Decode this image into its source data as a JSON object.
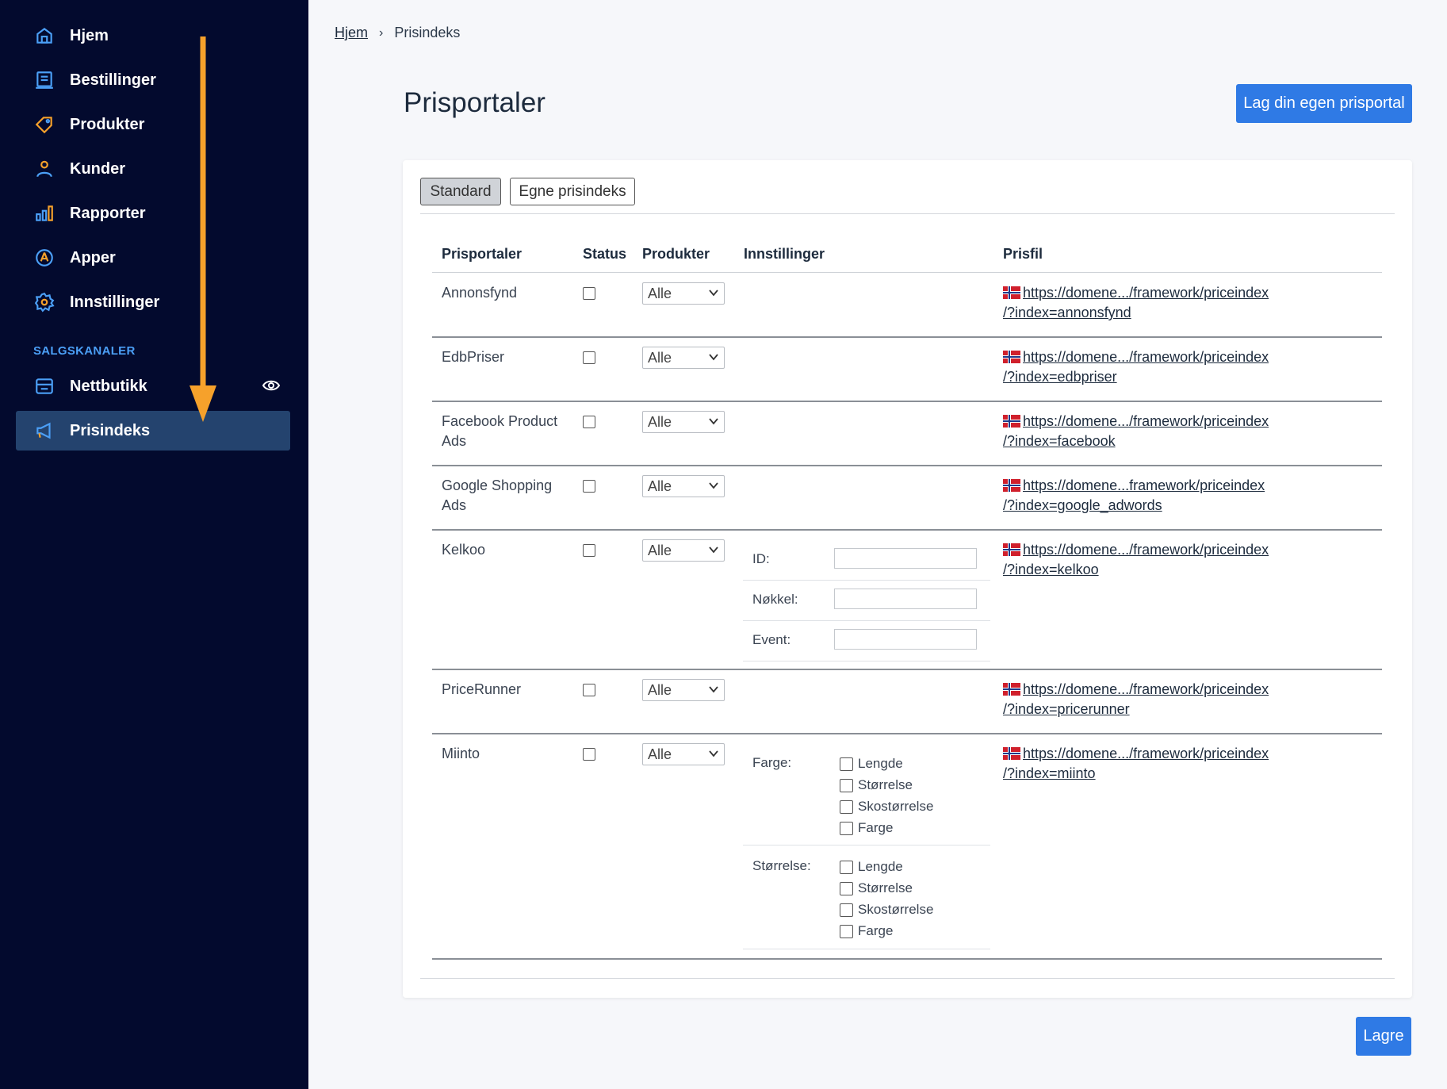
{
  "sidebar": {
    "items": [
      {
        "label": "Hjem",
        "icon": "home-icon"
      },
      {
        "label": "Bestillinger",
        "icon": "orders-list-icon"
      },
      {
        "label": "Produkter",
        "icon": "tag-icon"
      },
      {
        "label": "Kunder",
        "icon": "user-icon"
      },
      {
        "label": "Rapporter",
        "icon": "bar-chart-icon"
      },
      {
        "label": "Apper",
        "icon": "apps-icon"
      },
      {
        "label": "Innstillinger",
        "icon": "gear-icon"
      }
    ],
    "section_label": "SALGSKANALER",
    "channels": [
      {
        "label": "Nettbutikk",
        "icon": "store-icon"
      },
      {
        "label": "Prisindeks",
        "icon": "megaphone-icon",
        "active": true
      }
    ],
    "accent_color": "#4b9ff6",
    "background_color": "#030a2e",
    "annotation_arrow_color": "#f6a12b"
  },
  "breadcrumb": {
    "home": "Hjem",
    "current": "Prisindeks"
  },
  "page": {
    "title": "Prisportaler",
    "create_button": "Lag din egen prisportal",
    "save_button": "Lagre"
  },
  "tabs": [
    {
      "label": "Standard",
      "active": true
    },
    {
      "label": "Egne prisindeks",
      "active": false
    }
  ],
  "table": {
    "headers": [
      "Prisportaler",
      "Status",
      "Produkter",
      "Innstillinger",
      "Prisfil"
    ],
    "rows": [
      {
        "name": "Annonsfynd",
        "select": "Alle",
        "link1": "https://domene.../framework/priceindex",
        "link2": "/?index=annonsfynd"
      },
      {
        "name": "EdbPriser",
        "select": "Alle",
        "link1": "https://domene.../framework/priceindex",
        "link2": "/?index=edbpriser"
      },
      {
        "name": "Facebook Product Ads",
        "select": "Alle",
        "link1": "https://domene.../framework/priceindex",
        "link2": "/?index=facebook"
      },
      {
        "name": "Google Shopping Ads",
        "select": "Alle",
        "link1": "https://domene...framework/priceindex",
        "link2": "/?index=google_adwords"
      },
      {
        "name": "Kelkoo",
        "select": "Alle",
        "link1": "https://domene.../framework/priceindex",
        "link2": "/?index=kelkoo"
      },
      {
        "name": "PriceRunner",
        "select": "Alle",
        "link1": "https://domene.../framework/priceindex",
        "link2": "/?index=pricerunner"
      },
      {
        "name": "Miinto",
        "select": "Alle",
        "link1": "https://domene.../framework/priceindex",
        "link2": "/?index=miinto"
      }
    ],
    "kelkoo_settings": {
      "id_label": "ID:",
      "key_label": "Nøkkel:",
      "event_label": "Event:"
    },
    "miinto_settings": {
      "color_label": "Farge:",
      "size_label": "Størrelse:",
      "options": [
        "Lengde",
        "Størrelse",
        "Skostørrelse",
        "Farge"
      ]
    }
  }
}
